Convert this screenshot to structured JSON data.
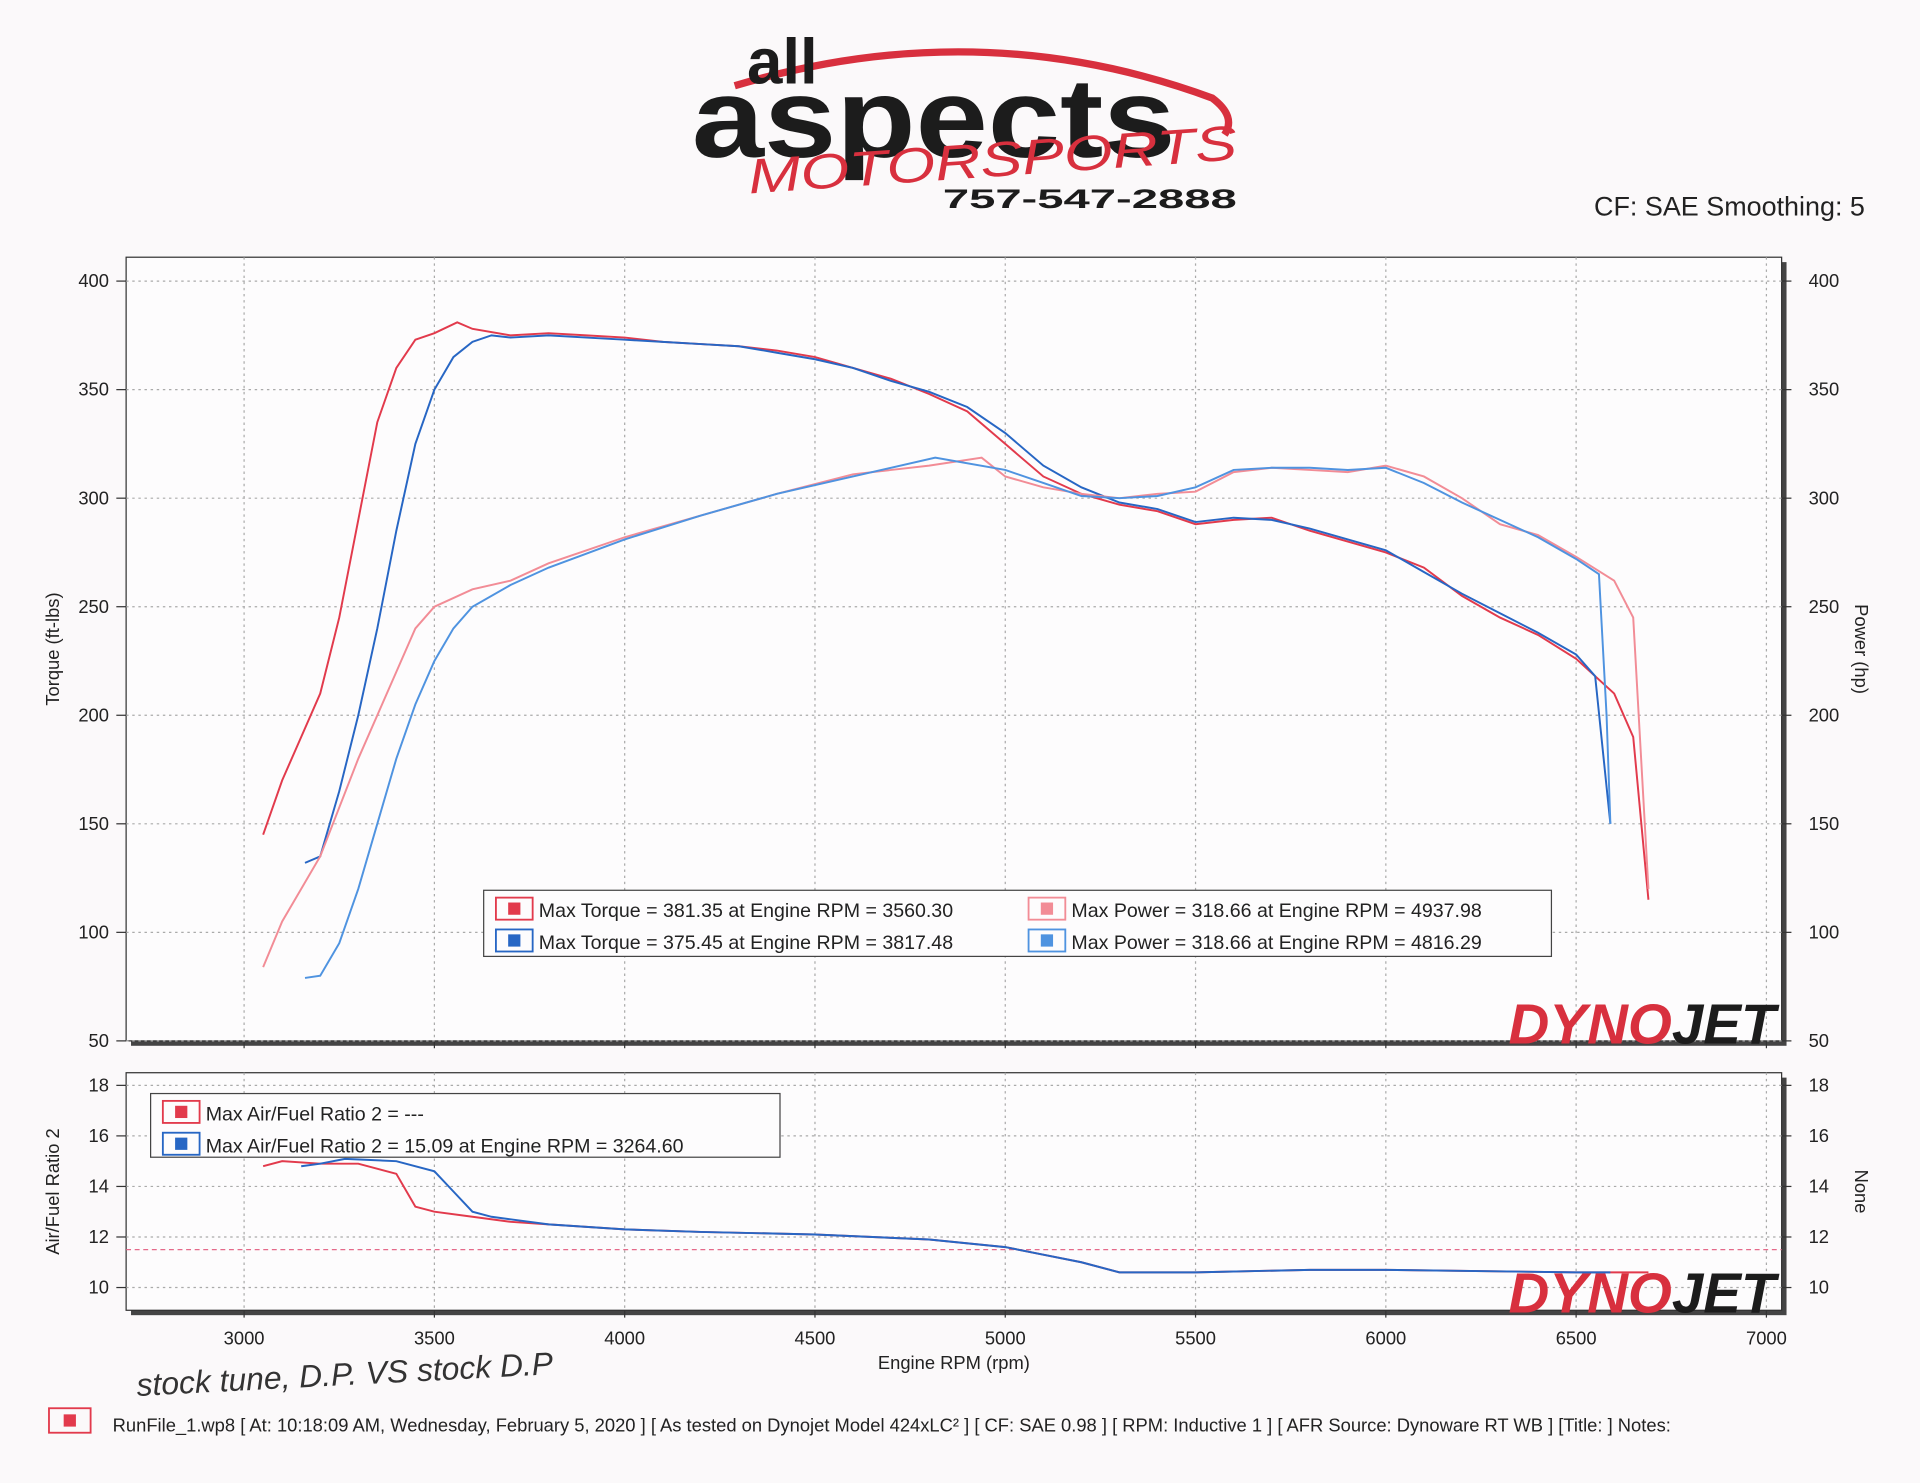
{
  "header": {
    "logo_top": "all",
    "logo_main": "aspects",
    "logo_sub": "MOTORSPORTS",
    "phone": "757-547-2888",
    "settings": "CF: SAE Smoothing: 5"
  },
  "watermark": [
    "DYNO",
    "JET"
  ],
  "chart_data": [
    {
      "type": "line",
      "ylabel": "Torque (ft-lbs)",
      "y2label": "Power (hp)",
      "xlim": [
        2690,
        7040
      ],
      "xticks": [
        3000,
        3500,
        4000,
        4500,
        5000,
        5500,
        6000,
        6500,
        7000
      ],
      "ylim": [
        50,
        411
      ],
      "yticks": [
        50,
        100,
        150,
        200,
        250,
        300,
        350,
        400
      ],
      "y2lim": [
        50,
        411
      ],
      "y2ticks": [
        50,
        100,
        150,
        200,
        250,
        300,
        350,
        400
      ],
      "grid": true,
      "series": [
        {
          "name": "Max Torque = 381.35 at Engine RPM = 3560.30",
          "color": "#e23a4c",
          "x": [
            3050,
            3100,
            3150,
            3200,
            3250,
            3300,
            3350,
            3400,
            3450,
            3500,
            3560,
            3600,
            3700,
            3800,
            3900,
            4000,
            4100,
            4200,
            4300,
            4400,
            4500,
            4600,
            4700,
            4800,
            4900,
            5000,
            5100,
            5200,
            5300,
            5400,
            5500,
            5600,
            5700,
            5800,
            5900,
            6000,
            6100,
            6200,
            6300,
            6400,
            6500,
            6600,
            6650,
            6690
          ],
          "values": [
            145,
            170,
            190,
            210,
            245,
            290,
            335,
            360,
            373,
            376,
            381,
            378,
            375,
            376,
            375,
            374,
            372,
            371,
            370,
            368,
            365,
            360,
            355,
            348,
            340,
            325,
            310,
            302,
            297,
            294,
            288,
            290,
            291,
            285,
            280,
            275,
            268,
            255,
            245,
            237,
            226,
            210,
            190,
            115
          ]
        },
        {
          "name": "Max Torque = 375.45 at Engine RPM = 3817.48",
          "color": "#2766c4",
          "x": [
            3160,
            3200,
            3250,
            3300,
            3350,
            3400,
            3450,
            3500,
            3550,
            3600,
            3650,
            3700,
            3800,
            3900,
            4000,
            4100,
            4200,
            4300,
            4400,
            4500,
            4600,
            4700,
            4800,
            4900,
            5000,
            5100,
            5200,
            5300,
            5400,
            5500,
            5600,
            5700,
            5800,
            5900,
            6000,
            6100,
            6200,
            6300,
            6400,
            6500,
            6550,
            6590
          ],
          "values": [
            132,
            135,
            165,
            200,
            240,
            285,
            325,
            350,
            365,
            372,
            375,
            374,
            375,
            374,
            373,
            372,
            371,
            370,
            367,
            364,
            360,
            354,
            349,
            342,
            330,
            315,
            305,
            298,
            295,
            289,
            291,
            290,
            286,
            281,
            276,
            266,
            256,
            247,
            238,
            228,
            218,
            150
          ]
        },
        {
          "name": "Max Power = 318.66 at Engine RPM = 4937.98",
          "color": "#f28c96",
          "axis": "y2",
          "x": [
            3050,
            3100,
            3200,
            3300,
            3400,
            3450,
            3500,
            3600,
            3700,
            3800,
            3900,
            4000,
            4200,
            4400,
            4600,
            4800,
            4938,
            5000,
            5100,
            5200,
            5300,
            5400,
            5500,
            5600,
            5700,
            5800,
            5900,
            6000,
            6100,
            6200,
            6300,
            6400,
            6500,
            6600,
            6650,
            6690
          ],
          "values": [
            84,
            105,
            135,
            180,
            220,
            240,
            250,
            258,
            262,
            270,
            276,
            282,
            292,
            302,
            311,
            315,
            318.66,
            310,
            305,
            302,
            300,
            302,
            303,
            312,
            314,
            313,
            312,
            315,
            310,
            300,
            288,
            283,
            273,
            262,
            245,
            120
          ]
        },
        {
          "name": "Max Power = 318.66 at Engine RPM = 4816.29",
          "color": "#4f93e0",
          "axis": "y2",
          "x": [
            3160,
            3200,
            3250,
            3300,
            3350,
            3400,
            3450,
            3500,
            3550,
            3600,
            3700,
            3800,
            4000,
            4200,
            4400,
            4600,
            4816,
            5000,
            5100,
            5200,
            5300,
            5400,
            5500,
            5600,
            5700,
            5800,
            5900,
            6000,
            6100,
            6200,
            6300,
            6400,
            6500,
            6560,
            6580,
            6590
          ],
          "values": [
            79,
            80,
            95,
            120,
            150,
            180,
            205,
            225,
            240,
            250,
            260,
            268,
            281,
            292,
            302,
            310,
            318.66,
            313,
            307,
            301,
            300,
            301,
            305,
            313,
            314,
            314,
            313,
            314,
            307,
            298,
            290,
            282,
            272,
            265,
            200,
            150
          ]
        }
      ]
    },
    {
      "type": "line",
      "ylabel": "Air/Fuel Ratio 2",
      "y2label": "None",
      "xlabel": "Engine RPM (rpm)",
      "xlim": [
        2690,
        7040
      ],
      "xticks": [
        3000,
        3500,
        4000,
        4500,
        5000,
        5500,
        6000,
        6500,
        7000
      ],
      "ylim": [
        9.1,
        18.5
      ],
      "yticks": [
        10,
        12,
        14,
        16,
        18
      ],
      "y2lim": [
        9.1,
        18.5
      ],
      "y2ticks": [
        10,
        12,
        14,
        16,
        18
      ],
      "grid": true,
      "reference_line": 11.5,
      "series": [
        {
          "name": "Max Air/Fuel Ratio 2 = ---",
          "color": "#e23a4c",
          "x": [
            3050,
            3100,
            3200,
            3300,
            3400,
            3450,
            3500,
            3600,
            3700,
            3800,
            4000,
            4200,
            4500,
            4800,
            5000,
            5100,
            5200,
            5300,
            5500,
            5800,
            6000,
            6500,
            6690
          ],
          "values": [
            14.8,
            15.0,
            14.9,
            14.9,
            14.5,
            13.2,
            13.0,
            12.8,
            12.6,
            12.5,
            12.3,
            12.2,
            12.1,
            11.9,
            11.6,
            11.3,
            11.0,
            10.6,
            10.6,
            10.7,
            10.7,
            10.6,
            10.6
          ]
        },
        {
          "name": "Max Air/Fuel Ratio 2 = 15.09 at Engine RPM = 3264.60",
          "color": "#2766c4",
          "x": [
            3150,
            3200,
            3265,
            3400,
            3500,
            3550,
            3600,
            3650,
            3700,
            3800,
            4000,
            4200,
            4500,
            4800,
            5000,
            5100,
            5200,
            5300,
            5500,
            5800,
            6000,
            6500,
            6590
          ],
          "values": [
            14.8,
            14.9,
            15.09,
            15.0,
            14.6,
            13.8,
            13.0,
            12.8,
            12.7,
            12.5,
            12.3,
            12.2,
            12.1,
            11.9,
            11.6,
            11.3,
            11.0,
            10.6,
            10.6,
            10.7,
            10.7,
            10.6,
            10.6
          ]
        }
      ]
    }
  ],
  "handwriting": "stock tune, D.P. VS stock D.P",
  "footer": "RunFile_1.wp8 [ At: 10:18:09 AM, Wednesday, February 5, 2020 ] [ As tested on Dynojet Model 424xLC² ] [ CF: SAE 0.98 ] [ RPM: Inductive 1 ] [ AFR Source: Dynoware RT WB ] [Title: ]  Notes:"
}
